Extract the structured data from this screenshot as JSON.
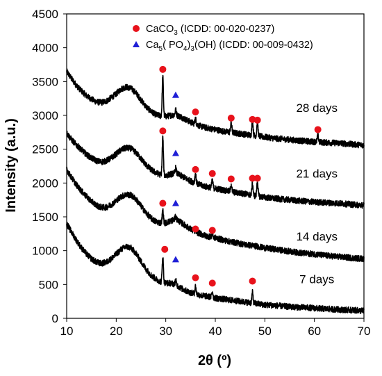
{
  "chart_data": {
    "type": "line",
    "xlabel": "2θ (º)",
    "ylabel": "Intensity (a.u.)",
    "xlim": [
      10,
      70
    ],
    "ylim": [
      0,
      4500
    ],
    "x_ticks": [
      10,
      20,
      30,
      40,
      50,
      60,
      70
    ],
    "y_ticks": [
      0,
      500,
      1000,
      1500,
      2000,
      2500,
      3000,
      3500,
      4000,
      4500
    ],
    "grid": false,
    "legend_position": "top-center",
    "legend": [
      {
        "marker": "circle",
        "color": "#e8121b",
        "label": "CaCO",
        "sub": "3",
        "rest": " (ICDD: 00-020-0237)"
      },
      {
        "marker": "triangle",
        "color": "#1f1fd6",
        "label": "Ca",
        "sub": "5",
        "mid": "( PO",
        "sub2": "4",
        "mid2": ")",
        "sub3": "3",
        "rest": "(OH) (ICDD: 00-009-0432)"
      }
    ],
    "series": [
      {
        "name": "28 days",
        "curve": [
          [
            10,
            3650
          ],
          [
            11,
            3540
          ],
          [
            12,
            3440
          ],
          [
            13,
            3360
          ],
          [
            14,
            3290
          ],
          [
            15,
            3240
          ],
          [
            16,
            3200
          ],
          [
            17,
            3190
          ],
          [
            18,
            3210
          ],
          [
            19,
            3260
          ],
          [
            20,
            3320
          ],
          [
            21,
            3390
          ],
          [
            22,
            3420
          ],
          [
            23,
            3400
          ],
          [
            24,
            3330
          ],
          [
            25,
            3230
          ],
          [
            26,
            3130
          ],
          [
            27,
            3060
          ],
          [
            28,
            3010
          ],
          [
            29,
            2990
          ],
          [
            30,
            2985
          ],
          [
            31,
            3000
          ],
          [
            32,
            3010
          ],
          [
            33,
            2980
          ],
          [
            34,
            2940
          ],
          [
            35,
            2900
          ],
          [
            36,
            2870
          ],
          [
            37,
            2840
          ],
          [
            38,
            2820
          ],
          [
            40,
            2790
          ],
          [
            42,
            2760
          ],
          [
            44,
            2740
          ],
          [
            46,
            2720
          ],
          [
            48,
            2700
          ],
          [
            50,
            2680
          ],
          [
            52,
            2660
          ],
          [
            55,
            2640
          ],
          [
            58,
            2620
          ],
          [
            60,
            2610
          ],
          [
            62,
            2600
          ],
          [
            65,
            2590
          ],
          [
            68,
            2570
          ],
          [
            70,
            2560
          ]
        ],
        "peaks": [
          [
            29.4,
            3580
          ],
          [
            32.0,
            3080
          ],
          [
            36.0,
            2950
          ],
          [
            43.2,
            2900
          ],
          [
            47.5,
            2920
          ],
          [
            48.5,
            2900
          ],
          [
            60.7,
            2700
          ]
        ],
        "caco3_markers": [
          [
            29.4,
            3680
          ],
          [
            36.0,
            3050
          ],
          [
            43.2,
            2960
          ],
          [
            47.5,
            2940
          ],
          [
            48.5,
            2930
          ],
          [
            60.7,
            2790
          ]
        ],
        "hap_markers": [
          [
            32.0,
            3300
          ]
        ]
      },
      {
        "name": "21 days",
        "curve": [
          [
            10,
            2740
          ],
          [
            11,
            2640
          ],
          [
            12,
            2560
          ],
          [
            13,
            2490
          ],
          [
            14,
            2420
          ],
          [
            15,
            2370
          ],
          [
            16,
            2330
          ],
          [
            17,
            2310
          ],
          [
            18,
            2330
          ],
          [
            19,
            2370
          ],
          [
            20,
            2430
          ],
          [
            21,
            2490
          ],
          [
            22,
            2520
          ],
          [
            23,
            2510
          ],
          [
            24,
            2450
          ],
          [
            25,
            2360
          ],
          [
            26,
            2270
          ],
          [
            27,
            2200
          ],
          [
            28,
            2150
          ],
          [
            29,
            2120
          ],
          [
            30,
            2110
          ],
          [
            31,
            2130
          ],
          [
            32,
            2150
          ],
          [
            33,
            2110
          ],
          [
            34,
            2070
          ],
          [
            35,
            2030
          ],
          [
            36,
            2000
          ],
          [
            37,
            1970
          ],
          [
            38,
            1950
          ],
          [
            40,
            1920
          ],
          [
            42,
            1890
          ],
          [
            44,
            1860
          ],
          [
            46,
            1840
          ],
          [
            48,
            1810
          ],
          [
            50,
            1790
          ],
          [
            52,
            1770
          ],
          [
            55,
            1750
          ],
          [
            58,
            1730
          ],
          [
            60,
            1720
          ],
          [
            62,
            1710
          ],
          [
            65,
            1700
          ],
          [
            68,
            1680
          ],
          [
            70,
            1670
          ]
        ],
        "peaks": [
          [
            29.4,
            2680
          ],
          [
            32.0,
            2220
          ],
          [
            36.0,
            2140
          ],
          [
            39.4,
            2040
          ],
          [
            43.2,
            1980
          ],
          [
            47.5,
            2000
          ],
          [
            48.5,
            2030
          ]
        ],
        "caco3_markers": [
          [
            29.4,
            2770
          ],
          [
            36.0,
            2200
          ],
          [
            39.4,
            2140
          ],
          [
            43.2,
            2060
          ],
          [
            47.5,
            2070
          ],
          [
            48.5,
            2070
          ]
        ],
        "hap_markers": [
          [
            32.0,
            2440
          ]
        ]
      },
      {
        "name": "14 days",
        "curve": [
          [
            10,
            2200
          ],
          [
            11,
            2080
          ],
          [
            12,
            1970
          ],
          [
            13,
            1880
          ],
          [
            14,
            1800
          ],
          [
            15,
            1730
          ],
          [
            16,
            1670
          ],
          [
            17,
            1640
          ],
          [
            18,
            1640
          ],
          [
            19,
            1680
          ],
          [
            20,
            1740
          ],
          [
            21,
            1800
          ],
          [
            22,
            1830
          ],
          [
            23,
            1820
          ],
          [
            24,
            1760
          ],
          [
            25,
            1660
          ],
          [
            26,
            1560
          ],
          [
            27,
            1480
          ],
          [
            28,
            1430
          ],
          [
            29,
            1410
          ],
          [
            30,
            1410
          ],
          [
            31,
            1440
          ],
          [
            32,
            1470
          ],
          [
            33,
            1420
          ],
          [
            34,
            1370
          ],
          [
            35,
            1320
          ],
          [
            36,
            1280
          ],
          [
            37,
            1250
          ],
          [
            38,
            1220
          ],
          [
            40,
            1190
          ],
          [
            42,
            1150
          ],
          [
            44,
            1120
          ],
          [
            46,
            1090
          ],
          [
            48,
            1070
          ],
          [
            50,
            1040
          ],
          [
            52,
            1020
          ],
          [
            55,
            990
          ],
          [
            58,
            960
          ],
          [
            60,
            950
          ],
          [
            62,
            930
          ],
          [
            65,
            910
          ],
          [
            68,
            890
          ],
          [
            70,
            880
          ]
        ],
        "peaks": [
          [
            29.4,
            1600
          ],
          [
            32.0,
            1500
          ],
          [
            36.0,
            1300
          ],
          [
            39.4,
            1250
          ]
        ],
        "caco3_markers": [
          [
            29.4,
            1700
          ],
          [
            36.0,
            1320
          ],
          [
            39.4,
            1300
          ]
        ],
        "hap_markers": [
          [
            32.0,
            1700
          ]
        ]
      },
      {
        "name": "7 days",
        "curve": [
          [
            10,
            1400
          ],
          [
            11,
            1270
          ],
          [
            12,
            1150
          ],
          [
            13,
            1040
          ],
          [
            14,
            950
          ],
          [
            15,
            880
          ],
          [
            16,
            830
          ],
          [
            17,
            810
          ],
          [
            18,
            830
          ],
          [
            19,
            880
          ],
          [
            20,
            950
          ],
          [
            21,
            1020
          ],
          [
            22,
            1060
          ],
          [
            23,
            1040
          ],
          [
            24,
            960
          ],
          [
            25,
            840
          ],
          [
            26,
            730
          ],
          [
            27,
            640
          ],
          [
            28,
            580
          ],
          [
            29,
            540
          ],
          [
            30,
            520
          ],
          [
            31,
            520
          ],
          [
            32,
            500
          ],
          [
            33,
            450
          ],
          [
            34,
            410
          ],
          [
            35,
            380
          ],
          [
            36,
            360
          ],
          [
            37,
            340
          ],
          [
            38,
            330
          ],
          [
            40,
            300
          ],
          [
            42,
            280
          ],
          [
            44,
            260
          ],
          [
            46,
            240
          ],
          [
            48,
            220
          ],
          [
            50,
            200
          ],
          [
            52,
            190
          ],
          [
            55,
            170
          ],
          [
            58,
            160
          ],
          [
            60,
            150
          ],
          [
            62,
            140
          ],
          [
            65,
            130
          ],
          [
            68,
            120
          ],
          [
            70,
            110
          ]
        ],
        "peaks": [
          [
            29.4,
            920
          ],
          [
            32.0,
            560
          ],
          [
            36.0,
            470
          ],
          [
            39.4,
            400
          ],
          [
            47.5,
            380
          ]
        ],
        "caco3_markers": [
          [
            29.8,
            1020
          ],
          [
            36.0,
            600
          ],
          [
            39.4,
            520
          ],
          [
            47.5,
            550
          ]
        ],
        "hap_markers": [
          [
            32.0,
            870
          ]
        ]
      }
    ],
    "series_label_positions": [
      [
        60.5,
        3050
      ],
      [
        60.5,
        2080
      ],
      [
        60.5,
        1150
      ],
      [
        60.5,
        520
      ]
    ]
  }
}
